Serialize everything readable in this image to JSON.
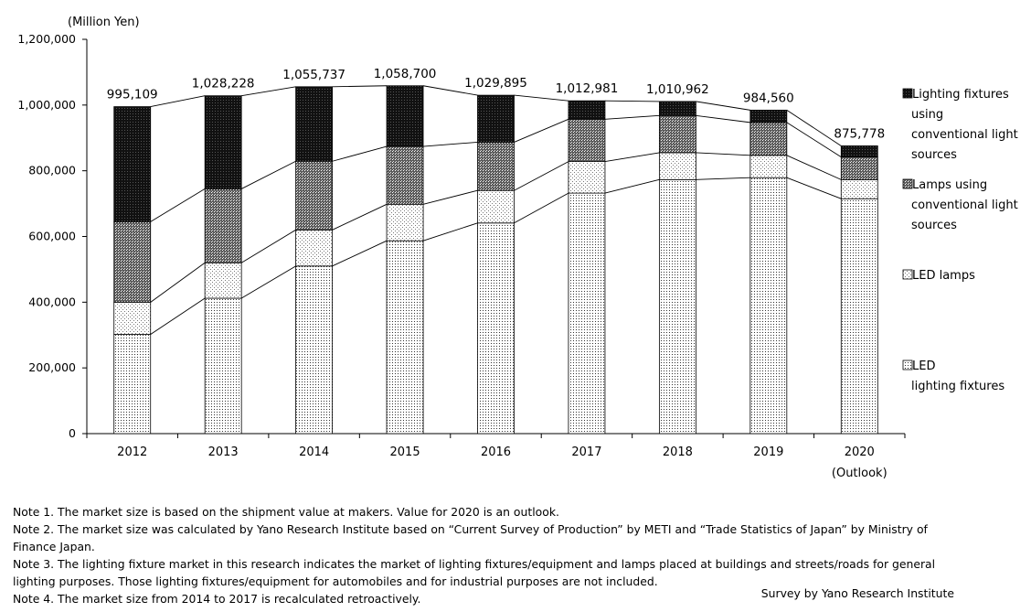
{
  "chart_data": {
    "type": "stacked_bar",
    "unit_label": "(Million  Yen)",
    "categories": [
      "2012",
      "2013",
      "2014",
      "2015",
      "2016",
      "2017",
      "2018",
      "2019",
      "2020"
    ],
    "category_sublabels": [
      "",
      "",
      "",
      "",
      "",
      "",
      "",
      "",
      "(Outlook)"
    ],
    "ylim": [
      0,
      1200000
    ],
    "yticks": [
      0,
      200000,
      400000,
      600000,
      800000,
      1000000,
      1200000
    ],
    "ytick_labels": [
      "0",
      "200,000",
      "400,000",
      "600,000",
      "800,000",
      "1,000,000",
      "1,200,000"
    ],
    "totals": [
      995109,
      1028228,
      1055737,
      1058700,
      1029895,
      1012981,
      1010962,
      984560,
      875778
    ],
    "total_labels": [
      "995,109",
      "1,028,228",
      "1,055,737",
      "1,058,700",
      "1,029,895",
      "1,012,981",
      "1,010,962",
      "984,560",
      "875,778"
    ],
    "series": [
      {
        "name": "LED lighting fixtures",
        "legend_lines": [
          "LED",
          "lighting fixtures"
        ],
        "pattern": "fine-dots",
        "values": [
          302000,
          412000,
          510000,
          587000,
          641000,
          732000,
          773000,
          779000,
          715000
        ]
      },
      {
        "name": "LED lamps",
        "legend_lines": [
          "LED lamps"
        ],
        "pattern": "light-dots",
        "values": [
          98000,
          108000,
          110000,
          111000,
          99000,
          96000,
          82000,
          68000,
          58000
        ]
      },
      {
        "name": "Lamps using conventional light sources",
        "legend_lines": [
          "Lamps using",
          "conventional light",
          "sources"
        ],
        "pattern": "dense-dots",
        "values": [
          245000,
          225000,
          209000,
          176000,
          147000,
          129000,
          113000,
          100000,
          69000
        ]
      },
      {
        "name": "Lighting fixtures using conventional light sources",
        "legend_lines": [
          "Lighting fixtures",
          "using",
          "conventional light",
          "sources"
        ],
        "pattern": "black-dots",
        "values": [
          350109,
          283228,
          226737,
          184700,
          142895,
          55981,
          42962,
          37560,
          33778
        ]
      }
    ],
    "connector_lines": true
  },
  "notes": [
    "Note 1.  The market size is based on the shipment value at makers. Value for 2020 is an outlook.",
    "Note 2.  The market size was calculated by Yano Research Institute based on “Current Survey of Production” by METI and “Trade Statistics of Japan” by Ministry of Finance Japan.",
    "Note 3.  The lighting fixture market in this research indicates the market of lighting fixtures/equipment and lamps placed at buildings and streets/roads for general lighting purposes. Those lighting fixtures/equipment for automobiles and for industrial purposes are not included.",
    "Note 4.  The market size from 2014 to 2017 is recalculated retroactively."
  ],
  "source": "Survey by Yano Research Institute"
}
